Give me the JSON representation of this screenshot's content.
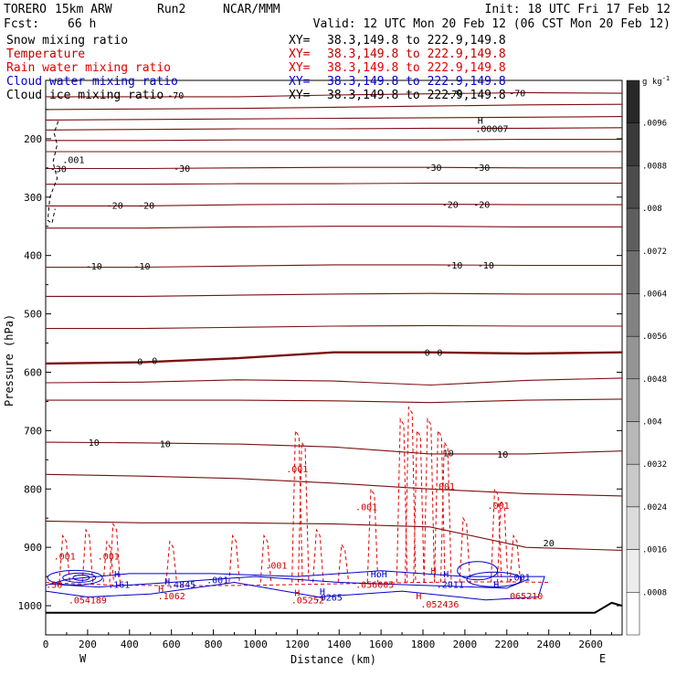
{
  "header": {
    "model": "TORERO",
    "resolution": "15km ARW",
    "run": "Run2",
    "org": "NCAR/MMM",
    "init": "Init: 18 UTC Fri 17 Feb 12",
    "fcst_label": "Fcst:",
    "fcst_value": "66 h",
    "valid": "Valid: 12 UTC Mon 20 Feb 12 (06 CST Mon 20 Feb 12)"
  },
  "legend": {
    "items": [
      {
        "name": "Snow mixing ratio",
        "color": "#000000"
      },
      {
        "name": "Temperature",
        "color": "#c00000"
      },
      {
        "name": "Rain water mixing ratio",
        "color": "#e00000"
      },
      {
        "name": "Cloud water mixing ratio",
        "color": "#0000cc"
      },
      {
        "name": "Cloud ice mixing ratio",
        "color": "#000000"
      }
    ],
    "xy_prefix": "XY=",
    "xy_value": "38.3,149.8 to 222.9,149.8"
  },
  "chart_data": {
    "type": "cross-section contour",
    "xlabel": "Distance (km)",
    "ylabel": "Pressure (hPa)",
    "x_ticks": [
      0,
      200,
      400,
      600,
      800,
      1000,
      1200,
      1400,
      1600,
      1800,
      2000,
      2200,
      2400,
      2600
    ],
    "xlim": [
      0,
      2750
    ],
    "y_ticks": [
      200,
      300,
      400,
      500,
      600,
      700,
      800,
      900,
      1000
    ],
    "ylim": [
      100,
      1050
    ],
    "x_end_labels": {
      "left": "W",
      "right": "E"
    },
    "colorbar": {
      "unit_label": "g kg",
      "unit_exp": "-1",
      "levels": [
        ".0096",
        ".0088",
        ".008",
        ".0072",
        ".0064",
        ".0056",
        ".0048",
        ".004",
        ".0032",
        ".0024",
        ".0016",
        ".0008"
      ]
    },
    "isotherms": [
      {
        "label": "-70",
        "p": [
          128,
          128,
          128,
          125,
          123,
          121,
          122
        ]
      },
      {
        "label": "",
        "p": [
          150,
          149,
          148,
          146,
          144,
          142,
          141
        ]
      },
      {
        "label": "",
        "p": [
          168,
          167,
          166,
          165,
          164,
          163,
          162
        ]
      },
      {
        "label": "",
        "p": [
          185,
          184,
          183,
          183,
          182,
          182,
          181
        ]
      },
      {
        "label": "",
        "p": [
          203,
          203,
          202,
          202,
          202,
          201,
          201
        ]
      },
      {
        "label": "",
        "p": [
          222,
          222,
          222,
          222,
          222,
          222,
          222
        ]
      },
      {
        "label": "-30",
        "p": [
          251,
          251,
          250,
          249,
          249,
          250,
          250
        ]
      },
      {
        "label": "",
        "p": [
          278,
          278,
          277,
          277,
          276,
          276,
          276
        ]
      },
      {
        "label": "-20",
        "p": [
          315,
          315,
          313,
          312,
          312,
          313,
          313
        ]
      },
      {
        "label": "",
        "p": [
          353,
          353,
          351,
          350,
          350,
          351,
          351
        ]
      },
      {
        "label": "-10",
        "p": [
          420,
          420,
          418,
          416,
          416,
          417,
          417
        ]
      },
      {
        "label": "",
        "p": [
          470,
          470,
          468,
          466,
          465,
          466,
          466
        ]
      },
      {
        "label": "",
        "p": [
          525,
          525,
          523,
          521,
          520,
          521,
          521
        ]
      },
      {
        "label": "0",
        "p": [
          585,
          583,
          576,
          566,
          566,
          568,
          566
        ]
      },
      {
        "label": "",
        "p": [
          618,
          617,
          613,
          615,
          622,
          614,
          610
        ]
      },
      {
        "label": "",
        "p": [
          648,
          648,
          648,
          649,
          652,
          648,
          646
        ]
      },
      {
        "label": "10",
        "p": [
          720,
          721,
          723,
          728,
          740,
          740,
          735
        ]
      },
      {
        "label": "",
        "p": [
          775,
          778,
          782,
          790,
          800,
          808,
          812
        ]
      },
      {
        "label": "20",
        "p": [
          855,
          858,
          858,
          860,
          865,
          900,
          905
        ]
      }
    ],
    "isotherm_labels": [
      {
        "text": "-70",
        "x": 620,
        "p": 125
      },
      {
        "text": "-70",
        "x": 1950,
        "p": 122
      },
      {
        "text": "-70",
        "x": 2250,
        "p": 121
      },
      {
        "text": "-30",
        "x": 60,
        "p": 251
      },
      {
        "text": "-30",
        "x": 650,
        "p": 250
      },
      {
        "text": "-30",
        "x": 1850,
        "p": 249
      },
      {
        "text": "-30",
        "x": 2080,
        "p": 249
      },
      {
        "text": "-20",
        "x": 330,
        "p": 314
      },
      {
        "text": "-20",
        "x": 480,
        "p": 314
      },
      {
        "text": "-20",
        "x": 1930,
        "p": 312
      },
      {
        "text": "-20",
        "x": 2080,
        "p": 312
      },
      {
        "text": "-10",
        "x": 230,
        "p": 418
      },
      {
        "text": "-10",
        "x": 460,
        "p": 418
      },
      {
        "text": "-10",
        "x": 1950,
        "p": 416
      },
      {
        "text": "-10",
        "x": 2100,
        "p": 416
      },
      {
        "text": "0",
        "x": 450,
        "p": 581
      },
      {
        "text": "0",
        "x": 520,
        "p": 580
      },
      {
        "text": "0",
        "x": 1820,
        "p": 566
      },
      {
        "text": "0",
        "x": 1880,
        "p": 566
      },
      {
        "text": "10",
        "x": 230,
        "p": 720
      },
      {
        "text": "10",
        "x": 570,
        "p": 722
      },
      {
        "text": "10",
        "x": 1920,
        "p": 738
      },
      {
        "text": "10",
        "x": 2180,
        "p": 740
      },
      {
        "text": "20",
        "x": 2400,
        "p": 892
      }
    ],
    "snow_labels": [
      {
        "text": ".001",
        "x": 80,
        "p": 235
      },
      {
        "text": "H",
        "x": 2060,
        "p": 168
      },
      {
        "text": ".00007",
        "x": 2050,
        "p": 182
      }
    ],
    "rain_labels": [
      {
        "text": ".001",
        "x": 90,
        "p": 915
      },
      {
        "text": ".001",
        "x": 300,
        "p": 915
      },
      {
        "text": ".001",
        "x": 1200,
        "p": 765
      },
      {
        "text": ".001",
        "x": 1530,
        "p": 830
      },
      {
        "text": ".001",
        "x": 1900,
        "p": 795
      },
      {
        "text": ".001",
        "x": 2160,
        "p": 828
      },
      {
        "text": ".001",
        "x": 1100,
        "p": 930
      },
      {
        "text": "H",
        "x": 550,
        "p": 970
      },
      {
        "text": ".1062",
        "x": 600,
        "p": 983
      },
      {
        "text": "H",
        "x": 1200,
        "p": 977
      },
      {
        "text": ".05252",
        "x": 1250,
        "p": 990
      },
      {
        "text": ".056005",
        "x": 1570,
        "p": 963
      },
      {
        "text": "H",
        "x": 1780,
        "p": 983
      },
      {
        "text": ".052436",
        "x": 1880,
        "p": 997
      },
      {
        "text": ".065210",
        "x": 2280,
        "p": 983
      },
      {
        "text": ".054189",
        "x": 200,
        "p": 990
      },
      {
        "text": ".36",
        "x": 40,
        "p": 963
      },
      {
        "text": "H",
        "x": 1850,
        "p": 940
      }
    ],
    "cloud_labels": [
      {
        "text": "H",
        "x": 340,
        "p": 945
      },
      {
        "text": ".161",
        "x": 350,
        "p": 963
      },
      {
        "text": "H",
        "x": 580,
        "p": 958
      },
      {
        "text": ".4845",
        "x": 650,
        "p": 963
      },
      {
        "text": ".001",
        "x": 820,
        "p": 955
      },
      {
        "text": "H",
        "x": 1320,
        "p": 975
      },
      {
        "text": ".0265",
        "x": 1350,
        "p": 985
      },
      {
        "text": "HoH",
        "x": 1590,
        "p": 945
      },
      {
        "text": ".2011",
        "x": 1930,
        "p": 963
      },
      {
        "text": "H",
        "x": 1910,
        "p": 945
      },
      {
        "text": ".001",
        "x": 2260,
        "p": 951
      },
      {
        "text": "H",
        "x": 2150,
        "p": 963
      }
    ],
    "terrain_surface_hPa": 1012
  }
}
